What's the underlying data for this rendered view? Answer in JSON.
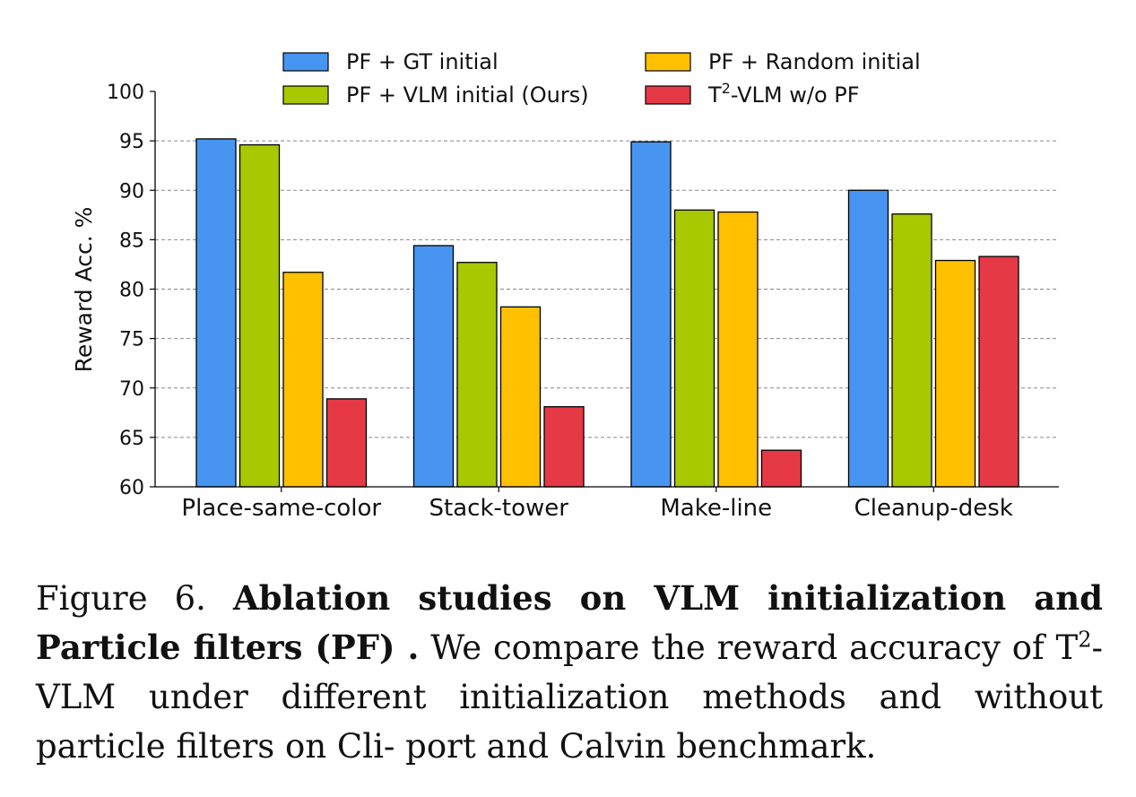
{
  "chart_data": {
    "type": "bar",
    "title": "",
    "xlabel": "",
    "ylabel": "Reward Acc. %",
    "ylim": [
      60,
      100
    ],
    "yticks": [
      60,
      65,
      70,
      75,
      80,
      85,
      90,
      95,
      100
    ],
    "grid": true,
    "legend_position": "top",
    "categories": [
      "Place-same-color",
      "Stack-tower",
      "Make-line",
      "Cleanup-desk"
    ],
    "series": [
      {
        "name": "PF + GT initial",
        "color": "#4795f0",
        "values": [
          95.2,
          84.4,
          94.9,
          90.0
        ]
      },
      {
        "name": "PF + VLM initial (Ours)",
        "color": "#a8c800",
        "values": [
          94.6,
          82.7,
          88.0,
          87.6
        ]
      },
      {
        "name": "PF + Random initial",
        "color": "#ffc000",
        "values": [
          81.7,
          78.2,
          87.8,
          82.9
        ]
      },
      {
        "name": "T2-VLM w/o PF",
        "color": "#e63946",
        "values": [
          68.9,
          68.1,
          63.7,
          83.3
        ]
      }
    ]
  },
  "legend": {
    "s0": "PF + GT initial",
    "s1": "PF + VLM initial (Ours)",
    "s2": "PF + Random initial",
    "s3_prefix": "T",
    "s3_sup": "2",
    "s3_suffix": "-VLM w/o PF"
  },
  "caption": {
    "fig_label": "Figure 6.",
    "bold_title": "Ablation studies on VLM initialization and Particle filters (PF) .",
    "text_1": "We compare the reward accuracy of T",
    "sup": "2",
    "text_2": "-VLM under different initialization methods and without particle filters on Cli- port and Calvin benchmark."
  }
}
